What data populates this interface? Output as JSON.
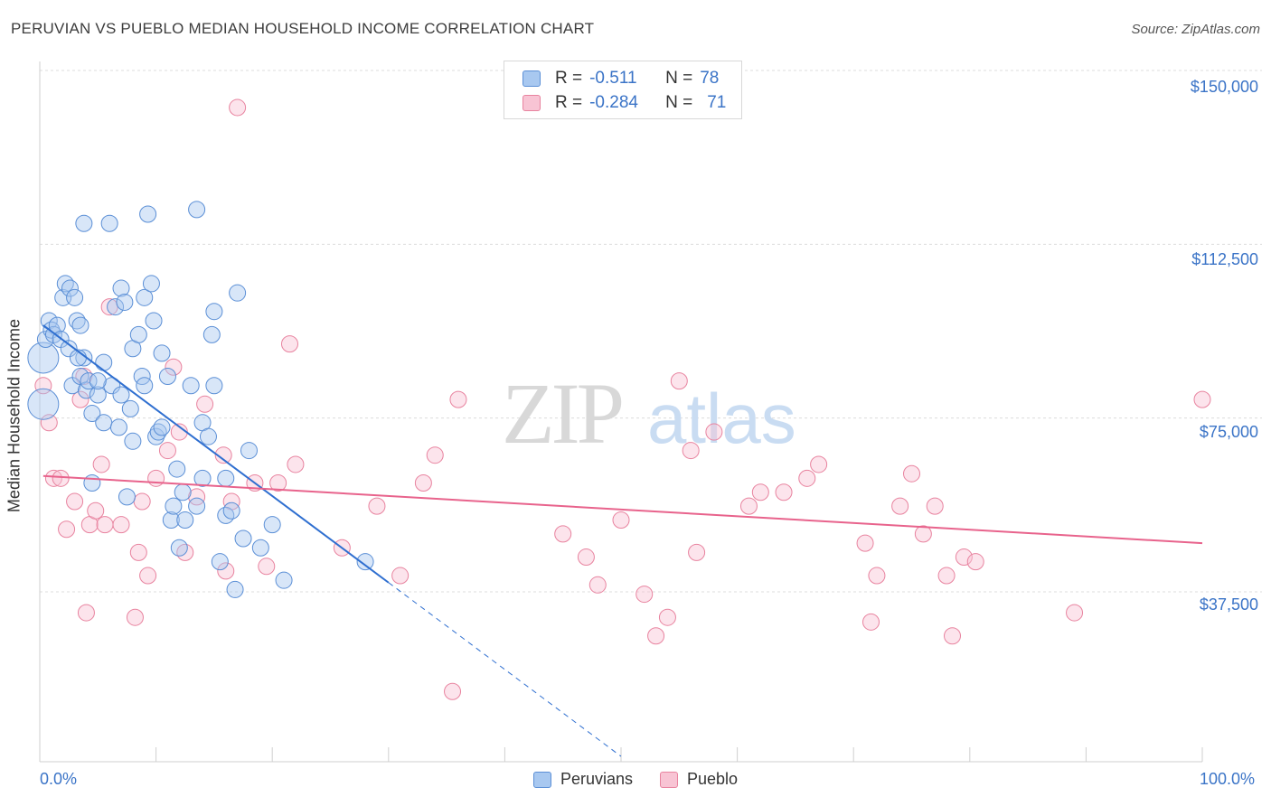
{
  "title": "PERUVIAN VS PUEBLO MEDIAN HOUSEHOLD INCOME CORRELATION CHART",
  "source": "Source: ZipAtlas.com",
  "watermark": "ZIPatlas",
  "legend_top": {
    "rows": [
      {
        "r_label": "R =",
        "r_value": "-0.511",
        "n_label": "N =",
        "n_value": "78",
        "color": "#a8c8f0",
        "border": "#5b8fd6"
      },
      {
        "r_label": "R =",
        "r_value": "-0.284",
        "n_label": "N =",
        "n_value": "71",
        "color": "#f8c4d4",
        "border": "#e8839f"
      }
    ]
  },
  "legend_bottom": [
    {
      "label": "Peruvians",
      "color": "#a8c8f0",
      "border": "#5b8fd6"
    },
    {
      "label": "Pueblo",
      "color": "#f8c4d4",
      "border": "#e8839f"
    }
  ],
  "colors": {
    "peruvians": "#5b8fd6",
    "peruvians_line": "#2f6fd0",
    "pueblo": "#e8839f",
    "pueblo_line": "#e8638c",
    "tick": "#3b74c7"
  },
  "chart_data": {
    "type": "scatter",
    "title": "PERUVIAN VS PUEBLO MEDIAN HOUSEHOLD INCOME CORRELATION CHART",
    "xlabel": "",
    "ylabel": "Median Household Income",
    "xlim": [
      0,
      100
    ],
    "ylim": [
      0,
      157500
    ],
    "x_tick_labels": [
      "0.0%",
      "100.0%"
    ],
    "y_ticks": [
      37500,
      75000,
      112500,
      150000
    ],
    "y_tick_labels": [
      "$37,500",
      "$75,000",
      "$112,500",
      "$150,000"
    ],
    "grid": true,
    "legend_position": "top-center",
    "series": [
      {
        "name": "Peruvians",
        "r": -0.511,
        "n": 78,
        "trend": {
          "x_start": 0.3,
          "y_start": 95000,
          "x_end": 30,
          "y_end": 39500,
          "dashed_to_x": 50,
          "dashed_to_y": 2000
        },
        "points": [
          [
            0.3,
            88000
          ],
          [
            0.3,
            78000
          ],
          [
            0.5,
            92000
          ],
          [
            0.8,
            96000
          ],
          [
            1.0,
            94000
          ],
          [
            1.2,
            93000
          ],
          [
            1.5,
            95000
          ],
          [
            1.8,
            92000
          ],
          [
            2.0,
            101000
          ],
          [
            2.2,
            104000
          ],
          [
            2.5,
            90000
          ],
          [
            2.8,
            82000
          ],
          [
            2.6,
            103000
          ],
          [
            3.0,
            101000
          ],
          [
            3.2,
            96000
          ],
          [
            3.5,
            95000
          ],
          [
            3.5,
            84000
          ],
          [
            3.8,
            88000
          ],
          [
            3.3,
            88000
          ],
          [
            4.0,
            81000
          ],
          [
            4.2,
            83000
          ],
          [
            3.8,
            117000
          ],
          [
            4.5,
            76000
          ],
          [
            5.0,
            80000
          ],
          [
            4.5,
            61000
          ],
          [
            5.5,
            87000
          ],
          [
            5.5,
            74000
          ],
          [
            6.0,
            117000
          ],
          [
            6.2,
            82000
          ],
          [
            6.5,
            99000
          ],
          [
            6.8,
            73000
          ],
          [
            7.0,
            103000
          ],
          [
            7.0,
            80000
          ],
          [
            7.3,
            100000
          ],
          [
            7.5,
            58000
          ],
          [
            7.8,
            77000
          ],
          [
            8.0,
            90000
          ],
          [
            8.0,
            70000
          ],
          [
            8.5,
            93000
          ],
          [
            8.8,
            84000
          ],
          [
            9.0,
            101000
          ],
          [
            9.3,
            119000
          ],
          [
            9.6,
            104000
          ],
          [
            9.8,
            96000
          ],
          [
            10.0,
            71000
          ],
          [
            10.2,
            72000
          ],
          [
            10.5,
            89000
          ],
          [
            11.0,
            84000
          ],
          [
            11.3,
            53000
          ],
          [
            11.5,
            56000
          ],
          [
            11.8,
            64000
          ],
          [
            12.0,
            47000
          ],
          [
            12.3,
            59000
          ],
          [
            12.5,
            53000
          ],
          [
            13.0,
            82000
          ],
          [
            13.5,
            120000
          ],
          [
            13.5,
            56000
          ],
          [
            14.0,
            74000
          ],
          [
            14.5,
            71000
          ],
          [
            14.8,
            93000
          ],
          [
            15.0,
            98000
          ],
          [
            15.0,
            82000
          ],
          [
            15.5,
            44000
          ],
          [
            16.0,
            54000
          ],
          [
            16.5,
            55000
          ],
          [
            17.0,
            102000
          ],
          [
            16.0,
            62000
          ],
          [
            14.0,
            62000
          ],
          [
            17.5,
            49000
          ],
          [
            18.0,
            68000
          ],
          [
            19.0,
            47000
          ],
          [
            20.0,
            52000
          ],
          [
            21.0,
            40000
          ],
          [
            28.0,
            44000
          ],
          [
            16.8,
            38000
          ],
          [
            5.0,
            83000
          ],
          [
            9.0,
            82000
          ],
          [
            10.5,
            73000
          ]
        ]
      },
      {
        "name": "Pueblo",
        "r": -0.284,
        "n": 71,
        "trend": {
          "x_start": 0.3,
          "y_start": 62500,
          "x_end": 100,
          "y_end": 48000
        },
        "points": [
          [
            0.3,
            82000
          ],
          [
            0.8,
            74000
          ],
          [
            1.2,
            62000
          ],
          [
            1.8,
            62000
          ],
          [
            2.3,
            51000
          ],
          [
            3.0,
            57000
          ],
          [
            3.5,
            79000
          ],
          [
            4.0,
            33000
          ],
          [
            4.3,
            52000
          ],
          [
            4.8,
            55000
          ],
          [
            5.3,
            65000
          ],
          [
            5.6,
            52000
          ],
          [
            6.0,
            99000
          ],
          [
            7.0,
            52000
          ],
          [
            8.2,
            32000
          ],
          [
            8.5,
            46000
          ],
          [
            8.8,
            57000
          ],
          [
            9.3,
            41000
          ],
          [
            10.0,
            62000
          ],
          [
            11.0,
            68000
          ],
          [
            11.5,
            86000
          ],
          [
            12.0,
            72000
          ],
          [
            12.5,
            46000
          ],
          [
            13.5,
            58000
          ],
          [
            14.2,
            78000
          ],
          [
            15.8,
            67000
          ],
          [
            16.0,
            42000
          ],
          [
            16.5,
            57000
          ],
          [
            17.0,
            142000
          ],
          [
            18.5,
            61000
          ],
          [
            19.5,
            43000
          ],
          [
            20.5,
            61000
          ],
          [
            21.5,
            91000
          ],
          [
            22.0,
            65000
          ],
          [
            26.0,
            47000
          ],
          [
            29.0,
            56000
          ],
          [
            31.0,
            41000
          ],
          [
            33.0,
            61000
          ],
          [
            34.0,
            67000
          ],
          [
            35.5,
            16000
          ],
          [
            36.0,
            79000
          ],
          [
            45.0,
            50000
          ],
          [
            47.0,
            45000
          ],
          [
            48.0,
            39000
          ],
          [
            50.0,
            53000
          ],
          [
            52.0,
            37000
          ],
          [
            53.0,
            28000
          ],
          [
            54.0,
            32000
          ],
          [
            55.0,
            83000
          ],
          [
            56.0,
            68000
          ],
          [
            56.5,
            46000
          ],
          [
            58.0,
            72000
          ],
          [
            61.0,
            56000
          ],
          [
            62.0,
            59000
          ],
          [
            64.0,
            59000
          ],
          [
            66.0,
            62000
          ],
          [
            67.0,
            65000
          ],
          [
            71.0,
            48000
          ],
          [
            71.5,
            31000
          ],
          [
            72.0,
            41000
          ],
          [
            74.0,
            56000
          ],
          [
            75.0,
            63000
          ],
          [
            76.0,
            50000
          ],
          [
            77.0,
            56000
          ],
          [
            78.0,
            41000
          ],
          [
            78.5,
            28000
          ],
          [
            79.5,
            45000
          ],
          [
            80.5,
            44000
          ],
          [
            100.0,
            79000
          ],
          [
            89.0,
            33000
          ],
          [
            3.8,
            84000
          ]
        ]
      }
    ]
  },
  "axis": {
    "ylabel": "Median Household Income",
    "x_left": "0.0%",
    "x_right": "100.0%"
  }
}
